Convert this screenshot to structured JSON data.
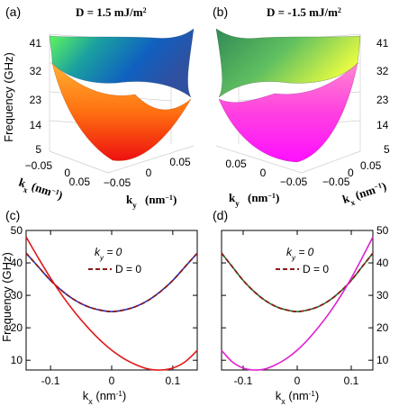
{
  "colors": {
    "blue_curve": "#2030c8",
    "red_curve": "#e01818",
    "green_curve": "#1f7a2a",
    "magenta_curve": "#e020d0",
    "dashed_ref": "#8b1a1a",
    "grid": "#cccccc"
  },
  "panels_3d": [
    {
      "label": "(a)",
      "title": "D = 1.5 mJ/m",
      "title_sup": "2",
      "zlabel": "Frequency (GHz)",
      "zticks": [
        "41",
        "32",
        "23",
        "14",
        "5"
      ],
      "kx_ticks": [
        "0.05",
        "0",
        "−0.05"
      ],
      "ky_ticks": [
        "−0.05",
        "0",
        "0.05"
      ],
      "kx_label": "k",
      "kx_sub": "x",
      "ky_label": "k",
      "ky_sub": "y",
      "unit": "(nm",
      "unit_sup": "−1",
      "unit_close": ")",
      "upper_colormap": "summer-to-blue",
      "lower_colormap": "autumn"
    },
    {
      "label": "(b)",
      "title": "D = -1.5 mJ/m",
      "title_sup": "2",
      "zticks": [
        "41",
        "32",
        "23",
        "14",
        "5"
      ],
      "kx_ticks": [
        "0.05",
        "0",
        "−0.05"
      ],
      "ky_ticks": [
        "0.05",
        "0",
        "−0.05"
      ],
      "kx_label": "k",
      "kx_sub": "x",
      "ky_label": "k",
      "ky_sub": "y",
      "unit": "(nm",
      "unit_sup": "−1",
      "unit_close": ")",
      "upper_colormap": "summer",
      "lower_colormap": "spring"
    }
  ],
  "chart_data": [
    {
      "type": "line",
      "panel": "(c)",
      "xlabel": "k",
      "xlabel_sub": "x",
      "xlabel_unit": " (nm",
      "xlabel_unit_sup": "-1",
      "xlabel_unit_close": ")",
      "ylabel": "Frequency (GHz)",
      "xlim": [
        -0.14,
        0.14
      ],
      "ylim": [
        7,
        50
      ],
      "xticks": [
        -0.1,
        0,
        0.1
      ],
      "xtick_labels": [
        "-0.1",
        "0",
        "0.1"
      ],
      "yticks": [
        10,
        20,
        30,
        40,
        50
      ],
      "ytick_labels": [
        "10",
        "20",
        "30",
        "40",
        "50"
      ],
      "ytick_side": "left",
      "annotation": "k",
      "annotation_sub": "y",
      "annotation_rest": " = 0",
      "legend": [
        {
          "label": "D = 0",
          "style": "dashed",
          "color": "#8b1a1a"
        }
      ],
      "series": [
        {
          "style": "solid",
          "color": "#2030c8",
          "x": [
            -0.14,
            -0.12,
            -0.1,
            -0.08,
            -0.06,
            -0.04,
            -0.02,
            0,
            0.02,
            0.04,
            0.06,
            0.08,
            0.1,
            0.12,
            0.14
          ],
          "y": [
            43.0,
            38.8,
            34.6,
            31.2,
            28.5,
            26.6,
            25.5,
            25.0,
            25.5,
            26.6,
            28.5,
            31.2,
            34.6,
            38.8,
            43.0
          ]
        },
        {
          "name": "D = 0",
          "style": "dashed",
          "color": "#8b1a1a",
          "x": [
            -0.14,
            -0.12,
            -0.1,
            -0.08,
            -0.06,
            -0.04,
            -0.02,
            0,
            0.02,
            0.04,
            0.06,
            0.08,
            0.1,
            0.12,
            0.14
          ],
          "y": [
            43.0,
            38.8,
            34.6,
            31.2,
            28.5,
            26.6,
            25.5,
            25.0,
            25.5,
            26.6,
            28.5,
            31.2,
            34.6,
            38.8,
            43.0
          ]
        },
        {
          "style": "solid",
          "color": "#e01818",
          "x": [
            -0.14,
            -0.12,
            -0.1,
            -0.08,
            -0.06,
            -0.04,
            -0.02,
            0,
            0.02,
            0.04,
            0.06,
            0.08,
            0.1,
            0.12,
            0.14
          ],
          "y": [
            48.0,
            41.5,
            35.3,
            29.7,
            24.7,
            20.3,
            16.4,
            13.1,
            10.5,
            8.6,
            7.3,
            7.0,
            7.6,
            9.5,
            13.0
          ]
        }
      ]
    },
    {
      "type": "line",
      "panel": "(d)",
      "xlabel": "k",
      "xlabel_sub": "x",
      "xlabel_unit": " (nm",
      "xlabel_unit_sup": "-1",
      "xlabel_unit_close": ")",
      "xlim": [
        -0.14,
        0.14
      ],
      "ylim": [
        7,
        50
      ],
      "xticks": [
        -0.1,
        0,
        0.1
      ],
      "xtick_labels": [
        "-0.1",
        "0",
        "0.1"
      ],
      "yticks": [
        10,
        20,
        30,
        40,
        50
      ],
      "ytick_labels": [
        "10",
        "20",
        "30",
        "40",
        "50"
      ],
      "ytick_side": "right",
      "annotation": "k",
      "annotation_sub": "y",
      "annotation_rest": " = 0",
      "legend": [
        {
          "label": "D = 0",
          "style": "dashed",
          "color": "#8b1a1a"
        }
      ],
      "series": [
        {
          "style": "solid",
          "color": "#1f7a2a",
          "x": [
            -0.14,
            -0.12,
            -0.1,
            -0.08,
            -0.06,
            -0.04,
            -0.02,
            0,
            0.02,
            0.04,
            0.06,
            0.08,
            0.1,
            0.12,
            0.14
          ],
          "y": [
            43.0,
            38.8,
            34.6,
            31.2,
            28.5,
            26.6,
            25.5,
            25.0,
            25.5,
            26.6,
            28.5,
            31.2,
            34.6,
            38.8,
            43.0
          ]
        },
        {
          "name": "D = 0",
          "style": "dashed",
          "color": "#8b1a1a",
          "x": [
            -0.14,
            -0.12,
            -0.1,
            -0.08,
            -0.06,
            -0.04,
            -0.02,
            0,
            0.02,
            0.04,
            0.06,
            0.08,
            0.1,
            0.12,
            0.14
          ],
          "y": [
            43.0,
            38.8,
            34.6,
            31.2,
            28.5,
            26.6,
            25.5,
            25.0,
            25.5,
            26.6,
            28.5,
            31.2,
            34.6,
            38.8,
            43.0
          ]
        },
        {
          "style": "solid",
          "color": "#e020d0",
          "x": [
            -0.14,
            -0.12,
            -0.1,
            -0.08,
            -0.06,
            -0.04,
            -0.02,
            0,
            0.02,
            0.04,
            0.06,
            0.08,
            0.1,
            0.12,
            0.14
          ],
          "y": [
            13.0,
            9.5,
            7.6,
            7.0,
            7.3,
            8.6,
            10.5,
            13.1,
            16.4,
            20.3,
            24.7,
            29.7,
            35.3,
            41.5,
            48.0
          ]
        }
      ]
    }
  ]
}
